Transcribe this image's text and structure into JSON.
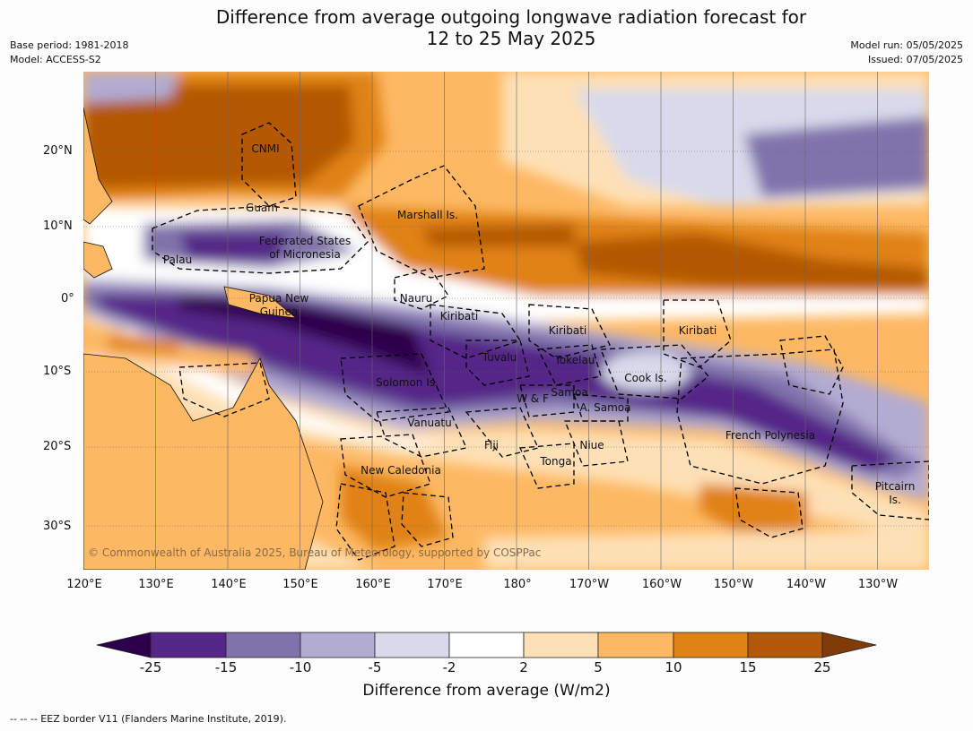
{
  "title_line1": "Difference from average outgoing longwave radiation forecast for",
  "title_line2": "12 to 25 May 2025",
  "meta_left": [
    "Base period: 1981-2018",
    "Model: ACCESS-S2"
  ],
  "meta_right": [
    "Model run: 05/05/2025",
    "Issued: 07/05/2025"
  ],
  "lat_labels": [
    "20°N",
    "10°N",
    "0°",
    "10°S",
    "20°S",
    "30°S"
  ],
  "lon_labels": [
    "120°E",
    "130°E",
    "140°E",
    "150°E",
    "160°E",
    "170°E",
    "180°",
    "170°W",
    "160°W",
    "150°W",
    "140°W",
    "130°W"
  ],
  "place_labels": [
    "CNMI",
    "Guam",
    "Marshall Is.",
    "Federated States",
    "of Micronesia",
    "Palau",
    "Papua New",
    "Guinea",
    "Nauru",
    "Kiribati",
    "Kiribati",
    "Kiribati",
    "Tuvalu",
    "Tokelau",
    "Cook Is.",
    "Solomon Is.",
    "Samoa",
    "W & F",
    "A. Samoa",
    "Vanuatu",
    "Fiji",
    "Niue",
    "French Polynesia",
    "Tonga",
    "New Caledonia",
    "Pitcairn",
    "Is."
  ],
  "copyright": "© Commonwealth of Australia 2025, Bureau of Meteorology, supported by COSPPac",
  "colorbar": {
    "ticks": [
      "-25",
      "-15",
      "-10",
      "-5",
      "-2",
      "2",
      "5",
      "10",
      "15",
      "25"
    ],
    "colors": [
      "#2d004b",
      "#542788",
      "#8073ac",
      "#b2abd2",
      "#d8daeb",
      "#ffffff",
      "#fee0b6",
      "#fdb863",
      "#e08214",
      "#b35806",
      "#7f3b08"
    ],
    "title": "Difference from average (W/m2)"
  },
  "footnote": "--  --  -- EEZ border V11 (Flanders Marine Institute, 2019)."
}
